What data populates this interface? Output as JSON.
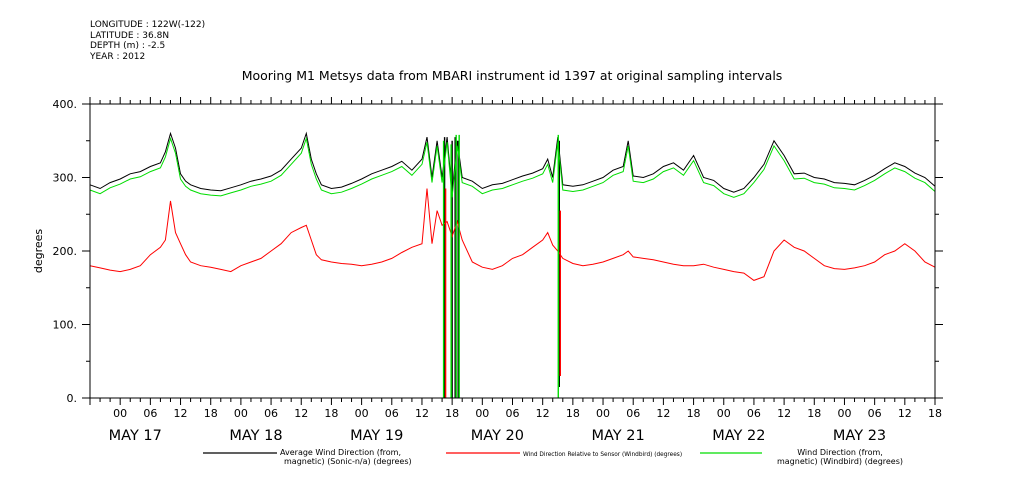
{
  "header": {
    "longitude": "LONGITUDE : 122W(-122)",
    "latitude": "LATITUDE : 36.8N",
    "depth": "DEPTH (m) : -2.5",
    "year": "YEAR : 2012"
  },
  "chart_data": {
    "type": "line",
    "title": "Mooring M1 Metsys data from MBARI instrument id 1397 at original sampling intervals",
    "ylabel": "degrees",
    "xlabel": "",
    "ylim": [
      0,
      400
    ],
    "yticks": [
      0,
      100,
      200,
      300,
      400
    ],
    "ytick_labels": [
      "0.",
      "100.",
      "200.",
      "300.",
      "400."
    ],
    "xlim_hours": [
      -6,
      162
    ],
    "hour_tick_labels": [
      "00",
      "06",
      "12",
      "18",
      "00",
      "06",
      "12",
      "18",
      "00",
      "06",
      "12",
      "18",
      "00",
      "06",
      "12",
      "18",
      "00",
      "06",
      "12",
      "18",
      "00",
      "06",
      "12",
      "18",
      "00",
      "06",
      "12",
      "18"
    ],
    "day_labels": [
      "MAY 17",
      "MAY 18",
      "MAY 19",
      "MAY 20",
      "MAY 21",
      "MAY 22",
      "MAY 23"
    ],
    "grid": false,
    "legend_position": "bottom",
    "series": [
      {
        "name": "Average Wind Direction (from, magnetic) (Sonic-n/a) (degrees)",
        "legend_line1": "Average Wind Direction (from,",
        "legend_line2": "magnetic) (Sonic-n/a) (degrees)",
        "color": "#000000",
        "x": [
          -6,
          -4,
          -2,
          0,
          2,
          4,
          6,
          8,
          9,
          10,
          11,
          12,
          13,
          14,
          16,
          18,
          20,
          22,
          24,
          26,
          28,
          30,
          32,
          34,
          36,
          37,
          38,
          39,
          40,
          42,
          44,
          46,
          48,
          50,
          52,
          54,
          56,
          58,
          60,
          61,
          62,
          63,
          64,
          65,
          66,
          67,
          68,
          70,
          72,
          74,
          76,
          78,
          80,
          82,
          84,
          85,
          86,
          87,
          88,
          90,
          92,
          94,
          96,
          98,
          100,
          101,
          102,
          104,
          106,
          108,
          110,
          112,
          114,
          116,
          118,
          120,
          122,
          124,
          126,
          128,
          130,
          132,
          134,
          136,
          138,
          140,
          142,
          144,
          146,
          148,
          150,
          152,
          154,
          156,
          158,
          160,
          162
        ],
        "y": [
          290,
          285,
          293,
          298,
          305,
          308,
          315,
          320,
          335,
          360,
          340,
          305,
          295,
          290,
          285,
          283,
          282,
          286,
          290,
          295,
          298,
          302,
          310,
          325,
          340,
          360,
          325,
          305,
          290,
          285,
          287,
          292,
          298,
          305,
          310,
          315,
          322,
          310,
          325,
          355,
          300,
          350,
          300,
          355,
          280,
          350,
          300,
          295,
          285,
          290,
          292,
          297,
          302,
          306,
          312,
          325,
          300,
          355,
          290,
          288,
          290,
          295,
          300,
          310,
          315,
          350,
          302,
          300,
          305,
          315,
          320,
          310,
          330,
          300,
          296,
          285,
          280,
          285,
          300,
          318,
          350,
          330,
          305,
          306,
          300,
          298,
          293,
          292,
          290,
          296,
          303,
          312,
          320,
          315,
          306,
          300,
          288
        ],
        "spikes": [
          {
            "x": 64.5,
            "low": 0,
            "high": 355
          },
          {
            "x": 66.0,
            "low": 0,
            "high": 350
          },
          {
            "x": 66.6,
            "low": 0,
            "high": 355
          },
          {
            "x": 67.2,
            "low": 0,
            "high": 350
          },
          {
            "x": 87.3,
            "low": 15,
            "high": 350
          }
        ]
      },
      {
        "name": "Wind Direction Relative to Sensor (Windbird) (degrees)",
        "legend_line1": "Wind Direction Relative to Sensor (Windbird) (degrees)",
        "legend_line2": "",
        "color": "#ff0000",
        "x": [
          -6,
          -4,
          -2,
          0,
          2,
          4,
          6,
          8,
          9,
          10,
          11,
          12,
          13,
          14,
          16,
          18,
          20,
          22,
          24,
          26,
          28,
          30,
          32,
          34,
          36,
          37,
          38,
          39,
          40,
          42,
          44,
          46,
          48,
          50,
          52,
          54,
          56,
          58,
          60,
          61,
          62,
          63,
          64,
          65,
          66,
          67,
          68,
          70,
          72,
          74,
          76,
          78,
          80,
          82,
          84,
          85,
          86,
          87,
          88,
          90,
          92,
          94,
          96,
          98,
          100,
          101,
          102,
          104,
          106,
          108,
          110,
          112,
          114,
          116,
          118,
          120,
          122,
          124,
          126,
          128,
          130,
          132,
          134,
          136,
          138,
          140,
          142,
          144,
          146,
          148,
          150,
          152,
          154,
          156,
          158,
          160,
          162
        ],
        "y": [
          180,
          177,
          174,
          172,
          175,
          180,
          195,
          205,
          215,
          268,
          225,
          210,
          195,
          185,
          180,
          178,
          175,
          172,
          180,
          185,
          190,
          200,
          210,
          225,
          232,
          235,
          215,
          195,
          188,
          185,
          183,
          182,
          180,
          182,
          185,
          190,
          198,
          205,
          210,
          285,
          210,
          255,
          235,
          240,
          220,
          240,
          215,
          185,
          178,
          175,
          180,
          190,
          195,
          205,
          215,
          225,
          208,
          200,
          190,
          183,
          180,
          182,
          185,
          190,
          195,
          200,
          192,
          190,
          188,
          185,
          182,
          180,
          180,
          182,
          178,
          175,
          172,
          170,
          160,
          165,
          200,
          215,
          205,
          200,
          190,
          180,
          176,
          175,
          177,
          180,
          185,
          195,
          200,
          210,
          200,
          185,
          178
        ],
        "spikes": [
          {
            "x": 64.7,
            "low": 0,
            "high": 285
          },
          {
            "x": 87.5,
            "low": 30,
            "high": 255
          }
        ]
      },
      {
        "name": "Wind Direction (from, magnetic) (Windbird) (degrees)",
        "legend_line1": "Wind Direction (from,",
        "legend_line2": "magnetic) (Windbird) (degrees)",
        "color": "#00dd00",
        "x": [
          -6,
          -4,
          -2,
          0,
          2,
          4,
          6,
          8,
          9,
          10,
          11,
          12,
          13,
          14,
          16,
          18,
          20,
          22,
          24,
          26,
          28,
          30,
          32,
          34,
          36,
          37,
          38,
          39,
          40,
          42,
          44,
          46,
          48,
          50,
          52,
          54,
          56,
          58,
          60,
          61,
          62,
          63,
          64,
          65,
          66,
          67,
          68,
          70,
          72,
          74,
          76,
          78,
          80,
          82,
          84,
          85,
          86,
          87,
          88,
          90,
          92,
          94,
          96,
          98,
          100,
          101,
          102,
          104,
          106,
          108,
          110,
          112,
          114,
          116,
          118,
          120,
          122,
          124,
          126,
          128,
          130,
          132,
          134,
          136,
          138,
          140,
          142,
          144,
          146,
          148,
          150,
          152,
          154,
          156,
          158,
          160,
          162
        ],
        "y": [
          283,
          278,
          286,
          291,
          298,
          301,
          308,
          313,
          328,
          353,
          333,
          298,
          288,
          283,
          278,
          276,
          275,
          279,
          283,
          288,
          291,
          295,
          303,
          318,
          333,
          353,
          318,
          298,
          283,
          278,
          280,
          285,
          291,
          298,
          303,
          308,
          315,
          303,
          318,
          348,
          293,
          343,
          293,
          348,
          273,
          343,
          293,
          288,
          278,
          283,
          285,
          290,
          295,
          299,
          305,
          318,
          293,
          348,
          283,
          281,
          283,
          288,
          293,
          303,
          308,
          343,
          295,
          293,
          298,
          308,
          313,
          303,
          323,
          293,
          289,
          278,
          273,
          278,
          293,
          311,
          343,
          323,
          298,
          299,
          293,
          291,
          286,
          285,
          283,
          289,
          296,
          305,
          313,
          308,
          299,
          293,
          281
        ],
        "spikes": [
          {
            "x": 64.3,
            "low": 0,
            "high": 350
          },
          {
            "x": 65.8,
            "low": 0,
            "high": 345
          },
          {
            "x": 66.8,
            "low": 0,
            "high": 358
          },
          {
            "x": 67.4,
            "low": 0,
            "high": 358
          },
          {
            "x": 87.1,
            "low": 0,
            "high": 358
          }
        ]
      }
    ]
  }
}
